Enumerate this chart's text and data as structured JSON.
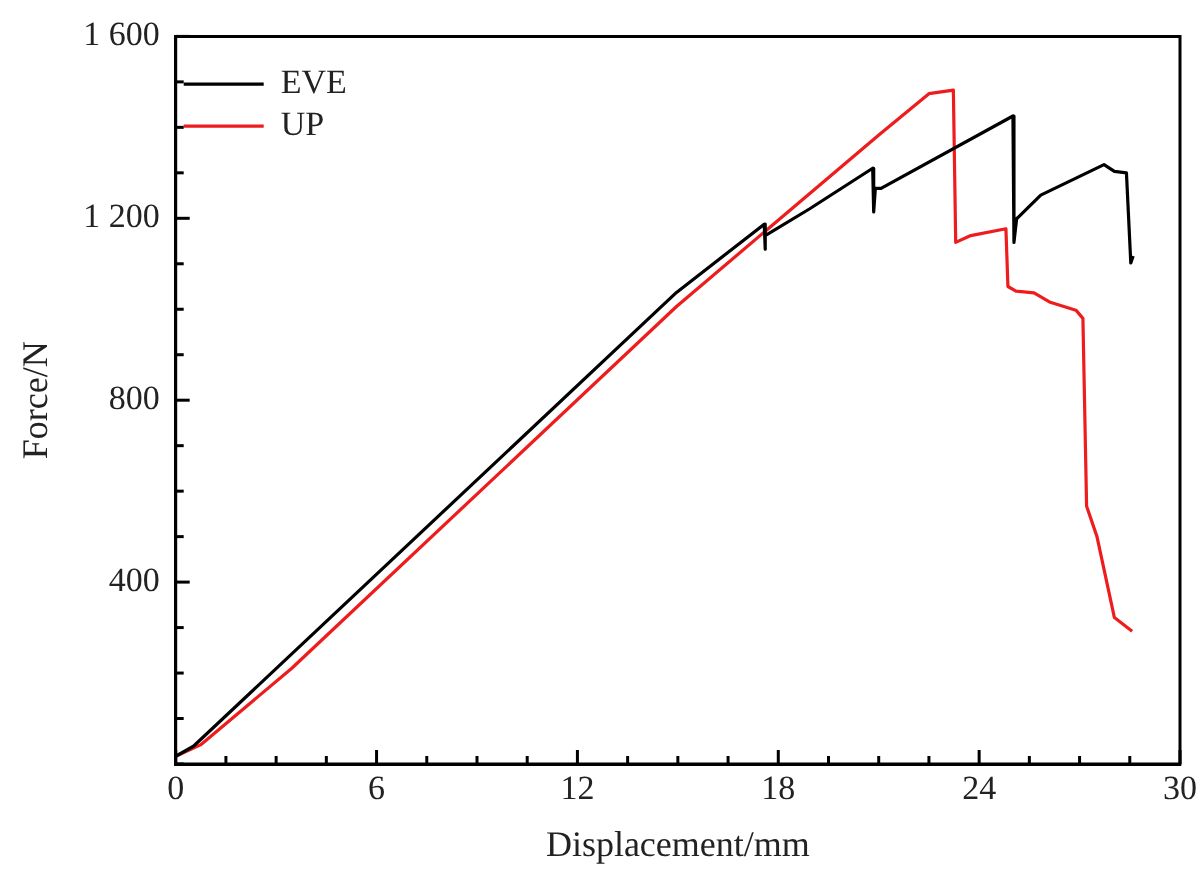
{
  "chart_data": {
    "type": "line",
    "xlabel": "Displacement/mm",
    "ylabel": "Force/N",
    "xlim": [
      0,
      30
    ],
    "xticks": [
      0,
      {
        "value": 1.5,
        "label": null
      },
      {
        "value": 3,
        "label": null
      },
      {
        "value": 4.5,
        "label": null
      },
      6,
      {
        "value": 7.5,
        "label": null
      },
      {
        "value": 9,
        "label": null
      },
      {
        "value": 10.5,
        "label": null
      },
      12,
      {
        "value": 13.5,
        "label": null
      },
      {
        "value": 15,
        "label": null
      },
      {
        "value": 16.5,
        "label": null
      },
      18,
      {
        "value": 19.5,
        "label": null
      },
      {
        "value": 21,
        "label": null
      },
      {
        "value": 22.5,
        "label": null
      },
      24,
      {
        "value": 25.5,
        "label": null
      },
      {
        "value": 27,
        "label": null
      },
      {
        "value": 28.5,
        "label": null
      },
      30
    ],
    "ylim": [
      0,
      1600
    ],
    "yticks": [
      {
        "value": 0,
        "label": null
      },
      {
        "value": 100,
        "label": null
      },
      {
        "value": 200,
        "label": null
      },
      {
        "value": 300,
        "label": null
      },
      400,
      {
        "value": 500,
        "label": null
      },
      {
        "value": 600,
        "label": null
      },
      {
        "value": 700,
        "label": null
      },
      800,
      {
        "value": 900,
        "label": null
      },
      {
        "value": 1000,
        "label": null
      },
      {
        "value": 1100,
        "label": null
      },
      {
        "value": 1200,
        "label": "1 200"
      },
      {
        "value": 1300,
        "label": null
      },
      {
        "value": 1400,
        "label": null
      },
      {
        "value": 1500,
        "label": null
      },
      {
        "value": 1600,
        "label": "1 600"
      }
    ],
    "grid": false,
    "legend": "top left",
    "marker": "none",
    "line_style": "solid",
    "series": [
      {
        "name": "EVE",
        "color": "#000000",
        "x": [
          0,
          0.53,
          14.96,
          17.58,
          17.6,
          17.62,
          18.94,
          20.82,
          20.85,
          20.9,
          21.07,
          25.01,
          25.04,
          25.12,
          25.84,
          27.73,
          28.04,
          28.4,
          28.53,
          28.6
        ],
        "values": [
          17,
          39,
          1037,
          1187,
          1132,
          1162,
          1221,
          1310,
          1214,
          1266,
          1266,
          1425,
          1147,
          1199,
          1251,
          1318,
          1303,
          1300,
          1102,
          1117
        ]
      },
      {
        "name": "UP",
        "color": "#ee1c1c",
        "x": [
          0,
          0.74,
          3.46,
          14.96,
          17.68,
          21.03,
          22.5,
          23.23,
          23.3,
          23.75,
          24.8,
          24.86,
          25.1,
          25.64,
          26.1,
          26.89,
          27.1,
          27.21,
          27.52,
          28.04,
          28.57
        ],
        "values": [
          17,
          42,
          210,
          1006,
          1176,
          1385,
          1474,
          1482,
          1147,
          1162,
          1177,
          1050,
          1040,
          1036,
          1016,
          998,
          980,
          567,
          500,
          322,
          292
        ]
      }
    ]
  }
}
